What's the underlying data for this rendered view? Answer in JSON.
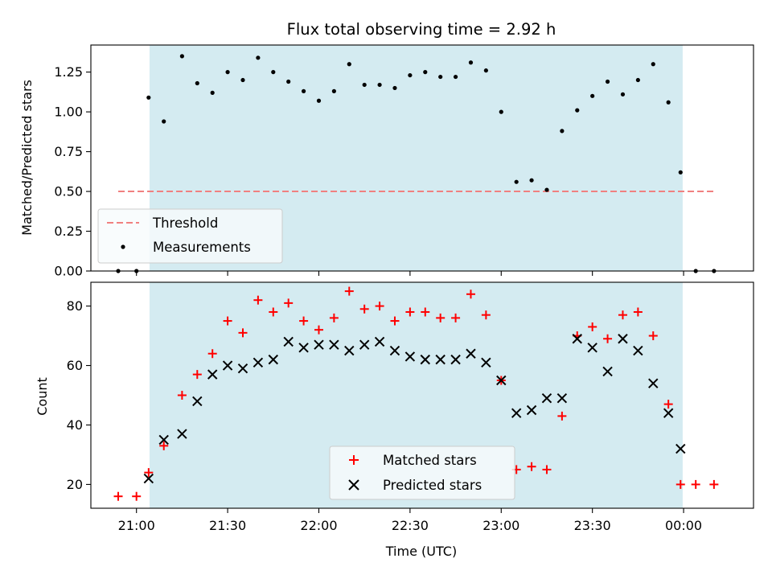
{
  "chart_data": {
    "type": "scatter",
    "title": "Flux total observing time = 2.92 h",
    "xlabel": "Time (UTC)",
    "x_ticks": [
      "21:00",
      "21:30",
      "22:00",
      "22:30",
      "23:00",
      "23:30",
      "00:00"
    ],
    "x_tick_minutes": [
      0,
      30,
      60,
      90,
      120,
      150,
      180
    ],
    "xlim_minutes": [
      -15,
      203
    ],
    "observing_window_minutes": [
      4.3,
      179.7
    ],
    "colors": {
      "window": "#d4ebf1",
      "threshold": "#f08080",
      "measurements": "#000000",
      "matched": "#ff0000",
      "predicted": "#000000"
    },
    "panels": [
      {
        "name": "ratio",
        "ylabel": "Matched/Predicted stars",
        "ylim": [
          0,
          1.42
        ],
        "y_ticks": [
          "0.00",
          "0.25",
          "0.50",
          "0.75",
          "1.00",
          "1.25"
        ],
        "y_tick_values": [
          0,
          0.25,
          0.5,
          0.75,
          1.0,
          1.25
        ],
        "legend": {
          "placement": "lower-left",
          "entries": [
            "Threshold",
            "Measurements"
          ]
        },
        "threshold": {
          "name": "Threshold",
          "x": [
            -6,
            190
          ],
          "y": 0.5
        },
        "measurements": {
          "name": "Measurements",
          "x": [
            -6,
            0,
            4,
            9,
            15,
            20,
            25,
            30,
            35,
            40,
            45,
            50,
            55,
            60,
            65,
            70,
            75,
            80,
            85,
            90,
            95,
            100,
            105,
            110,
            115,
            120,
            125,
            130,
            135,
            140,
            145,
            150,
            155,
            160,
            165,
            170,
            175,
            179,
            184,
            190
          ],
          "y": [
            0.0,
            0.0,
            1.09,
            0.94,
            1.35,
            1.18,
            1.12,
            1.25,
            1.2,
            1.34,
            1.25,
            1.19,
            1.13,
            1.07,
            1.13,
            1.3,
            1.17,
            1.17,
            1.15,
            1.23,
            1.25,
            1.22,
            1.22,
            1.31,
            1.26,
            1.0,
            0.56,
            0.57,
            0.51,
            0.88,
            1.01,
            1.1,
            1.19,
            1.11,
            1.2,
            1.3,
            1.06,
            0.62,
            0.0,
            0.0
          ]
        }
      },
      {
        "name": "count",
        "ylabel": "Count",
        "ylim": [
          12,
          88
        ],
        "y_ticks": [
          "20",
          "40",
          "60",
          "80"
        ],
        "y_tick_values": [
          20,
          40,
          60,
          80
        ],
        "legend": {
          "placement": "lower-center",
          "entries": [
            "Matched stars",
            "Predicted stars"
          ]
        },
        "series": [
          {
            "name": "Matched stars",
            "marker": "plus",
            "x": [
              -6,
              0,
              4,
              9,
              15,
              20,
              25,
              30,
              35,
              40,
              45,
              50,
              55,
              60,
              65,
              70,
              75,
              80,
              85,
              90,
              95,
              100,
              105,
              110,
              115,
              120,
              125,
              130,
              135,
              140,
              145,
              150,
              155,
              160,
              165,
              170,
              175,
              179,
              184,
              190
            ],
            "y": [
              16,
              16,
              24,
              33,
              50,
              57,
              64,
              75,
              71,
              82,
              78,
              81,
              75,
              72,
              76,
              85,
              79,
              80,
              75,
              78,
              78,
              76,
              76,
              84,
              77,
              55,
              25,
              26,
              25,
              43,
              70,
              73,
              69,
              77,
              78,
              70,
              47,
              20,
              20,
              20
            ]
          },
          {
            "name": "Predicted stars",
            "marker": "x",
            "x": [
              4,
              9,
              15,
              20,
              25,
              30,
              35,
              40,
              45,
              50,
              55,
              60,
              65,
              70,
              75,
              80,
              85,
              90,
              95,
              100,
              105,
              110,
              115,
              120,
              125,
              130,
              135,
              140,
              145,
              150,
              155,
              160,
              165,
              170,
              175,
              179
            ],
            "y": [
              22,
              35,
              37,
              48,
              57,
              60,
              59,
              61,
              62,
              68,
              66,
              67,
              67,
              65,
              67,
              68,
              65,
              63,
              62,
              62,
              62,
              64,
              61,
              55,
              44,
              45,
              49,
              49,
              69,
              66,
              58,
              69,
              65,
              54,
              44,
              32
            ]
          }
        ]
      }
    ]
  }
}
